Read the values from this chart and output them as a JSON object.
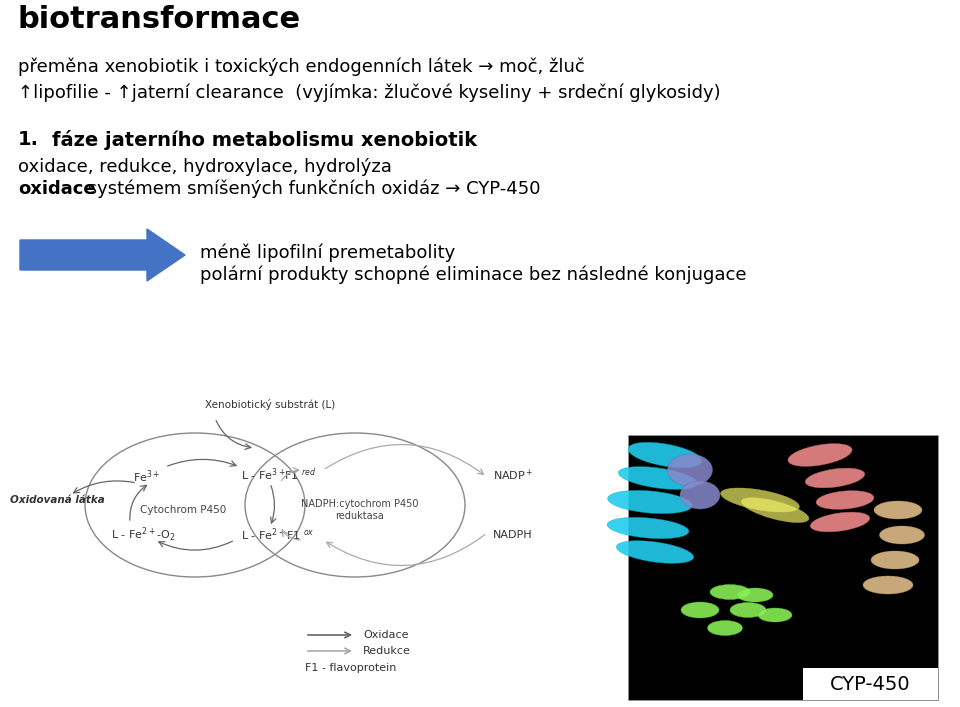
{
  "title": "biotransformace",
  "line1": "přeměna xenobiotik i toxických endogenních látek → moč, žluč",
  "line2": "↑lipofilie - ↑jaterní clearance  (vyjímka: žlučové kyseliny + srdeční glykosidy)",
  "phase_num": "1.",
  "phase_bold": "fáze jaterního metabolismu xenobiotik",
  "phase_line2": "oxidace, redukce, hydroxylace, hydrolýza",
  "phase_line3_bold": "oxidace",
  "phase_line3_rest": " systémem smíšených funkčních oxidáz → CYP-450",
  "arrow_text1": "méně lipofilní premetabolity",
  "arrow_text2": "polární produkty schopné eliminace bez následné konjugace",
  "bg_color": "#ffffff",
  "text_color": "#000000",
  "arrow_color": "#4472c4",
  "diagram_arrow_dark": "#666666",
  "diagram_arrow_light": "#aaaaaa"
}
